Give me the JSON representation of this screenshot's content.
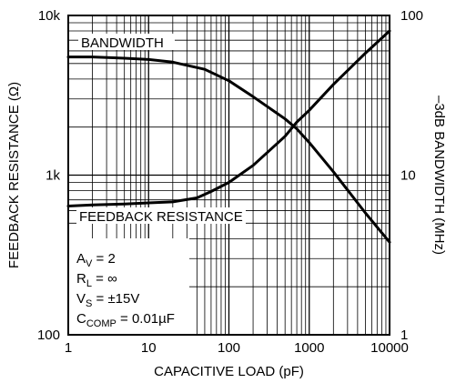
{
  "chart_data": {
    "type": "line",
    "xlabel": "CAPACITIVE LOAD (pF)",
    "ylabel_left": "FEEDBACK RESISTANCE (Ω)",
    "ylabel_right": "–3dB BANDWIDTH (MHz)",
    "x_scale": "log",
    "y_left_scale": "log",
    "y_right_scale": "log",
    "xlim": [
      1,
      10000
    ],
    "ylim_left": [
      100,
      10000
    ],
    "ylim_right": [
      1,
      100
    ],
    "grid": true,
    "x_ticks": [
      "1",
      "10",
      "100",
      "1000",
      "10000"
    ],
    "y_left_ticks": [
      "100",
      "1k",
      "10k"
    ],
    "y_right_ticks": [
      "1",
      "10",
      "100"
    ],
    "series": [
      {
        "name": "BANDWIDTH",
        "axis": "right",
        "x": [
          1,
          2,
          5,
          10,
          20,
          50,
          100,
          200,
          500,
          700,
          1000,
          2000,
          5000,
          10000
        ],
        "y": [
          55,
          55,
          54,
          53,
          51,
          46,
          39,
          31,
          22.5,
          19.5,
          16,
          10.5,
          5.8,
          3.8
        ]
      },
      {
        "name": "FEEDBACK RESISTANCE",
        "axis": "left",
        "x": [
          1,
          2,
          5,
          10,
          20,
          40,
          60,
          100,
          200,
          500,
          700,
          1000,
          2000,
          5000,
          10000
        ],
        "y": [
          640,
          650,
          660,
          670,
          680,
          720,
          790,
          900,
          1150,
          1750,
          2150,
          2550,
          3700,
          5800,
          8000
        ]
      }
    ],
    "annotations": {
      "av": "A",
      "av_sub": "V",
      "av_rest": " = 2",
      "rl": "R",
      "rl_sub": "L",
      "rl_rest": " = ∞",
      "vs": "V",
      "vs_sub": "S",
      "vs_rest": " = ±15V",
      "ccomp": "C",
      "ccomp_sub": "COMP",
      "ccomp_rest": " = 0.01µF"
    }
  }
}
